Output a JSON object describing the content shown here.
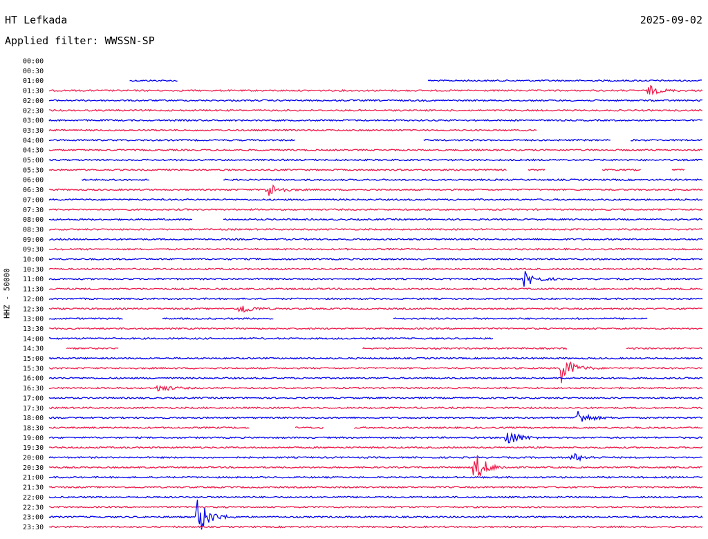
{
  "header": {
    "station": "HT Lefkada",
    "date": "2025-09-02",
    "filter_label": "Applied filter: WWSSN-SP"
  },
  "chart_data": {
    "type": "line",
    "title": "HT Lefkada",
    "subtitle": "Applied filter: WWSSN-SP",
    "ylabel": "HHZ - 50000",
    "time_labels": [
      "00:00",
      "00:30",
      "01:00",
      "01:30",
      "02:00",
      "02:30",
      "03:00",
      "03:30",
      "04:00",
      "04:30",
      "05:00",
      "05:30",
      "06:00",
      "06:30",
      "07:00",
      "07:30",
      "08:00",
      "08:30",
      "09:00",
      "09:30",
      "10:00",
      "10:30",
      "11:00",
      "11:30",
      "12:00",
      "12:30",
      "13:00",
      "13:30",
      "14:00",
      "14:30",
      "15:00",
      "15:30",
      "16:00",
      "16:30",
      "17:00",
      "17:30",
      "18:00",
      "18:30",
      "19:00",
      "19:30",
      "20:00",
      "20:30",
      "21:00",
      "21:30",
      "22:00",
      "22:30",
      "23:00",
      "23:30"
    ],
    "x_range_minutes": [
      0,
      30
    ],
    "trace_colors": [
      "#0000ee",
      "#ee1a4a"
    ],
    "gaps": [
      {
        "row": 0,
        "start": 0,
        "end": 30
      },
      {
        "row": 1,
        "start": 0,
        "end": 30
      },
      {
        "row": 2,
        "start": 0,
        "end": 3.7
      },
      {
        "row": 2,
        "start": 5.9,
        "end": 17.4
      },
      {
        "row": 7,
        "start": 22.4,
        "end": 30
      },
      {
        "row": 8,
        "start": 11.3,
        "end": 17.2
      },
      {
        "row": 8,
        "start": 25.8,
        "end": 26.7
      },
      {
        "row": 11,
        "start": 21.0,
        "end": 22.0
      },
      {
        "row": 11,
        "start": 22.8,
        "end": 25.4
      },
      {
        "row": 11,
        "start": 27.2,
        "end": 28.6
      },
      {
        "row": 11,
        "start": 29.2,
        "end": 30
      },
      {
        "row": 12,
        "start": 0,
        "end": 1.5
      },
      {
        "row": 12,
        "start": 4.6,
        "end": 8.0
      },
      {
        "row": 16,
        "start": 6.6,
        "end": 8.0
      },
      {
        "row": 26,
        "start": 3.4,
        "end": 5.2
      },
      {
        "row": 26,
        "start": 10.3,
        "end": 15.8
      },
      {
        "row": 26,
        "start": 27.5,
        "end": 30
      },
      {
        "row": 28,
        "start": 20.4,
        "end": 30
      },
      {
        "row": 29,
        "start": 0,
        "end": 0.8
      },
      {
        "row": 29,
        "start": 3.2,
        "end": 14.4
      },
      {
        "row": 29,
        "start": 23.8,
        "end": 26.5
      },
      {
        "row": 37,
        "start": 9.2,
        "end": 11.3
      },
      {
        "row": 37,
        "start": 12.6,
        "end": 14.0
      }
    ],
    "events": [
      {
        "row": 3,
        "minute": 27.5,
        "amplitude": 8
      },
      {
        "row": 13,
        "minute": 10.0,
        "amplitude": 12
      },
      {
        "row": 22,
        "minute": 21.8,
        "amplitude": 12
      },
      {
        "row": 25,
        "minute": 8.7,
        "amplitude": 10
      },
      {
        "row": 31,
        "minute": 23.5,
        "amplitude": 22
      },
      {
        "row": 33,
        "minute": 5.0,
        "amplitude": 6
      },
      {
        "row": 36,
        "minute": 24.2,
        "amplitude": 13
      },
      {
        "row": 38,
        "minute": 21.0,
        "amplitude": 15
      },
      {
        "row": 40,
        "minute": 24.0,
        "amplitude": 7
      },
      {
        "row": 41,
        "minute": 19.5,
        "amplitude": 26
      },
      {
        "row": 46,
        "minute": 6.8,
        "amplitude": 30
      }
    ]
  }
}
